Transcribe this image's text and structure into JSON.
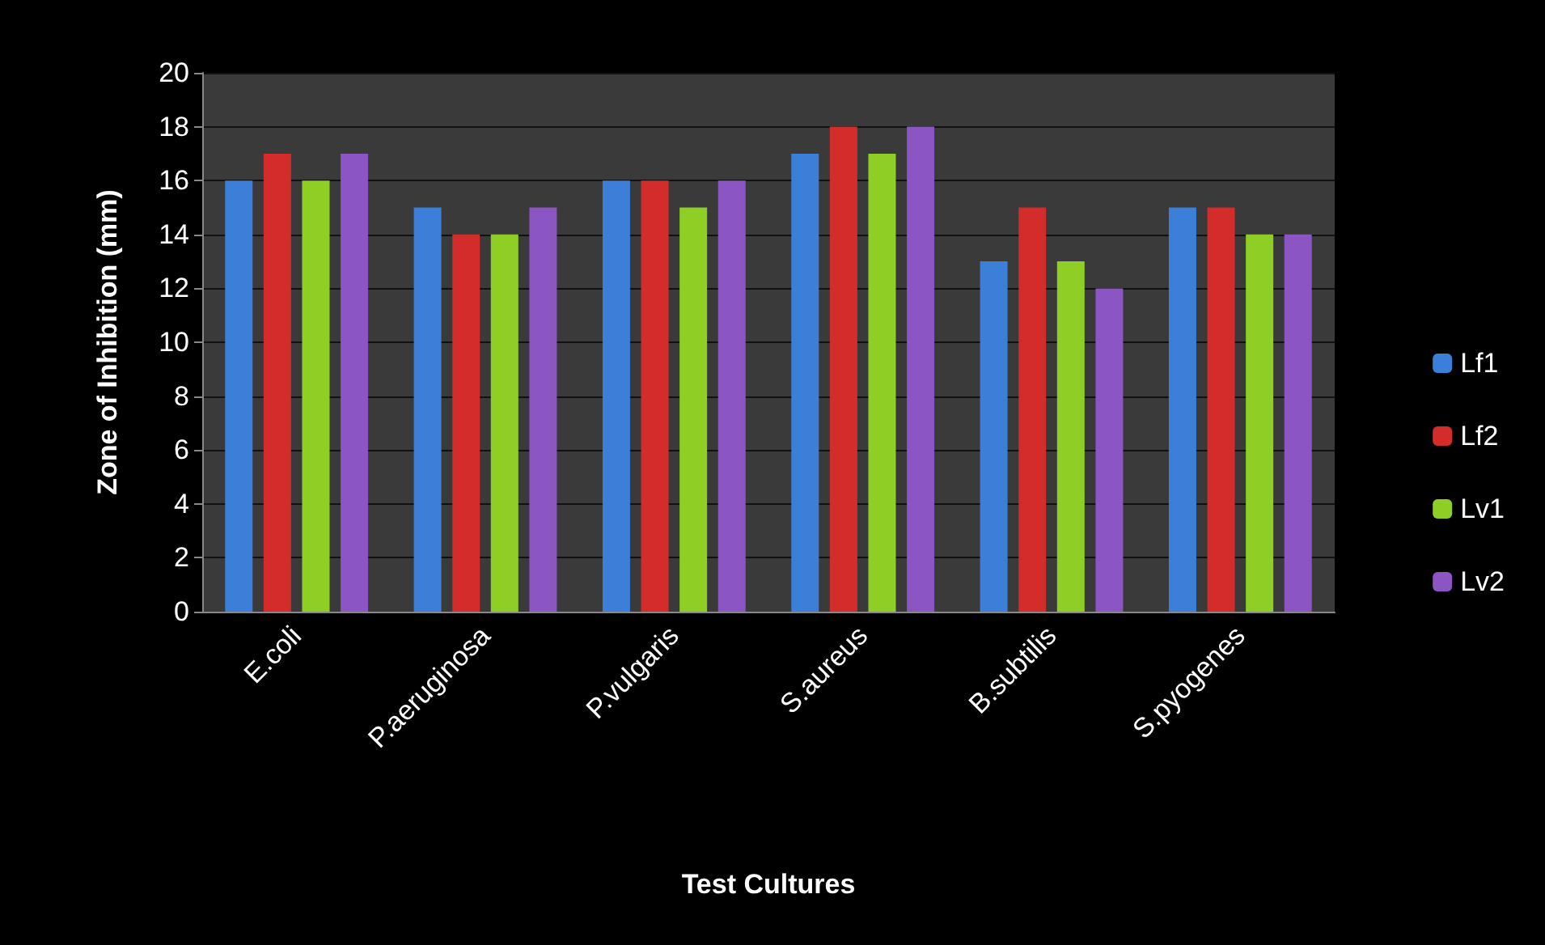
{
  "chart_data": {
    "type": "bar",
    "xlabel": "Test Cultures",
    "ylabel": "Zone of Inhibition (mm)",
    "categories": [
      "E.coli",
      "P.aeruginosa",
      "P.vulgaris",
      "S.aureus",
      "B.subtilis",
      "S.pyogenes"
    ],
    "series": [
      {
        "name": "Lf1",
        "color": "#3b7fd9",
        "values": [
          16,
          15,
          16,
          17,
          13,
          15
        ]
      },
      {
        "name": "Lf2",
        "color": "#d42b2b",
        "values": [
          17,
          14,
          16,
          18,
          15,
          15
        ]
      },
      {
        "name": "Lv1",
        "color": "#8fce24",
        "values": [
          16,
          14,
          15,
          17,
          13,
          14
        ]
      },
      {
        "name": "Lv2",
        "color": "#8b55c4",
        "values": [
          17,
          15,
          16,
          18,
          12,
          14
        ]
      }
    ],
    "ylim": [
      0,
      20
    ],
    "yticks": [
      0,
      2,
      4,
      6,
      8,
      10,
      12,
      14,
      16,
      18,
      20
    ],
    "grid": "y",
    "legend": "right"
  }
}
